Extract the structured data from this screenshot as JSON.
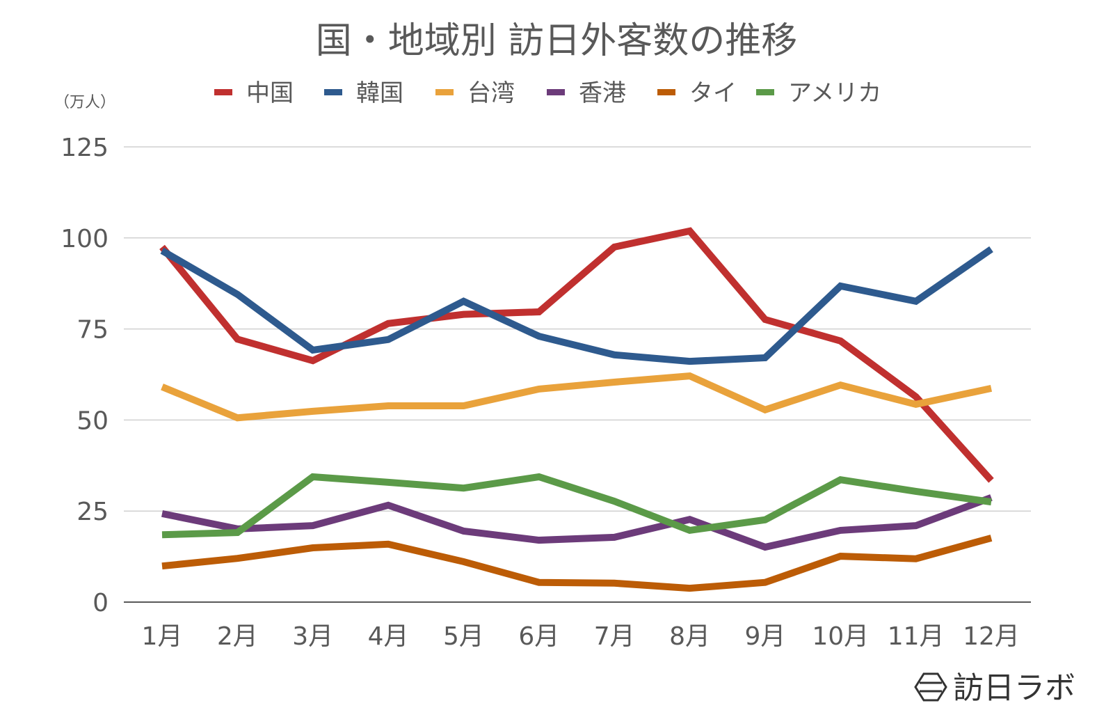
{
  "chart_data": {
    "type": "line",
    "title": "国・地域別 訪日外客数の推移",
    "unit_label": "（万人）",
    "xlabel": "",
    "ylabel": "",
    "categories": [
      "1月",
      "2月",
      "3月",
      "4月",
      "5月",
      "6月",
      "7月",
      "8月",
      "9月",
      "10月",
      "11月",
      "12月"
    ],
    "ylim": [
      0,
      125
    ],
    "yticks": [
      0,
      25,
      50,
      75,
      100,
      125
    ],
    "grid": true,
    "legend_position": "top",
    "series": [
      {
        "name": "中国",
        "color": "#c0302f",
        "values": [
          97.5,
          72.2,
          66.3,
          76.5,
          79.0,
          79.7,
          97.5,
          101.9,
          77.6,
          71.7,
          56.4,
          33.4
        ]
      },
      {
        "name": "韓国",
        "color": "#2e5a8e",
        "values": [
          96.5,
          84.5,
          69.2,
          72.1,
          82.6,
          73.0,
          67.9,
          66.1,
          67.1,
          86.8,
          82.6,
          96.9
        ]
      },
      {
        "name": "台湾",
        "color": "#e9a23b",
        "values": [
          59.1,
          50.6,
          52.4,
          53.9,
          53.9,
          58.5,
          60.4,
          62.1,
          52.8,
          59.6,
          54.3,
          58.7
        ]
      },
      {
        "name": "香港",
        "color": "#6c3b7a",
        "values": [
          24.3,
          20.1,
          21.0,
          26.6,
          19.5,
          17.0,
          17.8,
          22.7,
          15.1,
          19.7,
          21.0,
          28.7
        ]
      },
      {
        "name": "タイ",
        "color": "#bc5c06",
        "values": [
          9.9,
          12.0,
          14.9,
          15.9,
          11.1,
          5.4,
          5.2,
          3.8,
          5.4,
          12.6,
          11.9,
          17.6
        ]
      },
      {
        "name": "アメリカ",
        "color": "#5b9a48",
        "values": [
          18.5,
          19.1,
          34.4,
          32.9,
          31.3,
          34.4,
          27.7,
          19.7,
          22.6,
          33.6,
          30.4,
          27.5
        ]
      }
    ]
  },
  "logo": {
    "text": "訪日ラボ",
    "icon": "hexagon-logo-icon"
  }
}
